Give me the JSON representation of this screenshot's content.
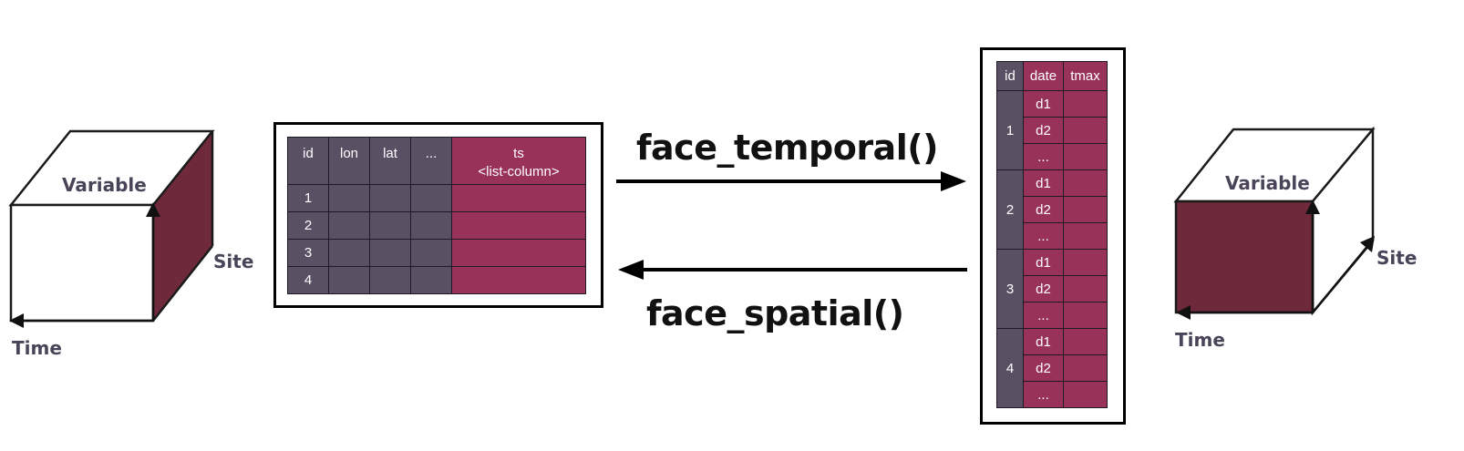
{
  "left_cube": {
    "top_label": "Variable",
    "side_label": "Site",
    "bottom_label": "Time",
    "colors": {
      "side_face": "#6e2a3a",
      "front_face": "#ffffff",
      "top_face": "#ffffff"
    }
  },
  "right_cube": {
    "top_label": "Variable",
    "side_label": "Site",
    "bottom_label": "Time",
    "colors": {
      "side_face": "#ffffff",
      "front_face": "#6e2a3a",
      "top_face": "#ffffff"
    }
  },
  "spatial_table": {
    "headers": [
      "id",
      "lon",
      "lat",
      "...",
      "ts"
    ],
    "ts_subheader": "<list-column>",
    "rows": [
      {
        "id": "1"
      },
      {
        "id": "2"
      },
      {
        "id": "3"
      },
      {
        "id": "4"
      }
    ]
  },
  "temporal_table": {
    "headers": [
      "id",
      "date",
      "tmax"
    ],
    "groups": [
      {
        "id": "1",
        "dates": [
          "d1",
          "d2",
          "..."
        ]
      },
      {
        "id": "2",
        "dates": [
          "d1",
          "d2",
          "..."
        ]
      },
      {
        "id": "3",
        "dates": [
          "d1",
          "d2",
          "..."
        ]
      },
      {
        "id": "4",
        "dates": [
          "d1",
          "d2",
          "..."
        ]
      }
    ]
  },
  "arrows": {
    "to_temporal": "face_temporal()",
    "to_spatial": "face_spatial()"
  },
  "colors": {
    "purple": "#5a5064",
    "crimson": "#993259",
    "label": "#4a4458"
  }
}
